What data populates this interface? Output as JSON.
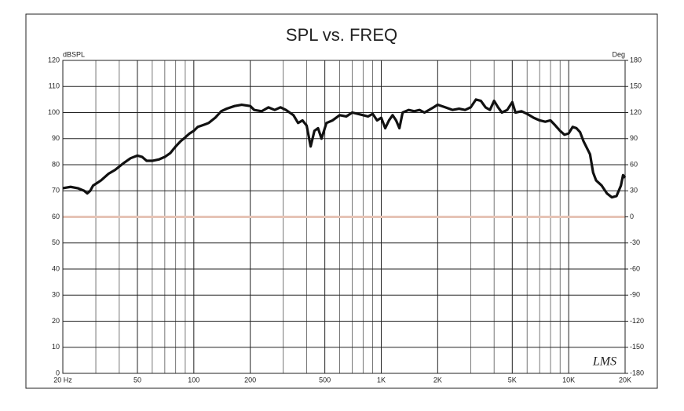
{
  "chart_data": {
    "type": "line",
    "title": "SPL vs. FREQ",
    "y_label": "dBSPL",
    "y2_label": "Deg",
    "watermark": "LMS",
    "xscale": "log",
    "xlim": [
      20,
      20000
    ],
    "xticks": [
      {
        "value": 20,
        "label": "20 Hz"
      },
      50,
      100,
      200,
      500,
      {
        "value": 1000,
        "label": "1K"
      },
      {
        "value": 2000,
        "label": "2K"
      },
      {
        "value": 5000,
        "label": "5K"
      },
      {
        "value": 10000,
        "label": "10K"
      },
      {
        "value": 20000,
        "label": "20K"
      }
    ],
    "xminor": [
      30,
      40,
      60,
      70,
      80,
      90,
      300,
      400,
      600,
      700,
      800,
      900,
      3000,
      4000,
      6000,
      7000,
      8000,
      9000
    ],
    "ylim": [
      0,
      120
    ],
    "yticks": [
      0,
      10,
      20,
      30,
      40,
      50,
      60,
      70,
      80,
      90,
      100,
      110,
      120
    ],
    "y2lim": [
      -180,
      180
    ],
    "y2ticks": [
      -180,
      -150,
      -120,
      -90,
      -60,
      -30,
      0,
      30,
      60,
      90,
      120,
      150,
      180
    ],
    "grid": true,
    "reference_line": {
      "value": 60,
      "color": "#e6c4b6"
    },
    "color": "#111111",
    "x": [
      20,
      22,
      24,
      26,
      27,
      28,
      29,
      32,
      35,
      38,
      42,
      46,
      50,
      53,
      56,
      60,
      65,
      70,
      75,
      80,
      85,
      90,
      95,
      100,
      105,
      110,
      115,
      120,
      130,
      140,
      150,
      165,
      180,
      200,
      210,
      230,
      250,
      270,
      290,
      310,
      340,
      360,
      380,
      400,
      420,
      440,
      460,
      480,
      510,
      550,
      600,
      650,
      700,
      750,
      800,
      850,
      900,
      950,
      1000,
      1050,
      1100,
      1150,
      1200,
      1250,
      1300,
      1400,
      1500,
      1600,
      1700,
      1800,
      1900,
      2000,
      2200,
      2400,
      2600,
      2800,
      3000,
      3200,
      3400,
      3600,
      3800,
      4000,
      4200,
      4400,
      4700,
      5000,
      5200,
      5600,
      6000,
      6500,
      7000,
      7500,
      8000,
      8500,
      9000,
      9500,
      10000,
      10500,
      11000,
      11500,
      12000,
      13000,
      13500,
      14000,
      15000,
      16000,
      17000,
      18000,
      19000,
      19500,
      20000
    ],
    "values": [
      71,
      71.5,
      71,
      70,
      69,
      70,
      72,
      74,
      76.5,
      78,
      80.5,
      82.5,
      83.5,
      83,
      81.5,
      81.5,
      82,
      83,
      84.5,
      87,
      89,
      90.5,
      92,
      93,
      94.5,
      95,
      95.5,
      96,
      98,
      100.5,
      101.5,
      102.5,
      103,
      102.5,
      101,
      100.5,
      102,
      101,
      102,
      101,
      99,
      96,
      97,
      95,
      87,
      93,
      94,
      90,
      96,
      97,
      99,
      98.5,
      100,
      99.5,
      99,
      98.5,
      99.5,
      97,
      98,
      94,
      97,
      99,
      97,
      94,
      100,
      101,
      100.5,
      101,
      100,
      101,
      102,
      103,
      102,
      101,
      101.5,
      101,
      102,
      105,
      104.5,
      102,
      101,
      104.5,
      102,
      100,
      101,
      104,
      100,
      100.5,
      99.5,
      98,
      97,
      96.5,
      97,
      95,
      93,
      91.5,
      92,
      94.5,
      94,
      92.5,
      89,
      84,
      77,
      74,
      72,
      69,
      67.5,
      68,
      72,
      76,
      75
    ]
  }
}
